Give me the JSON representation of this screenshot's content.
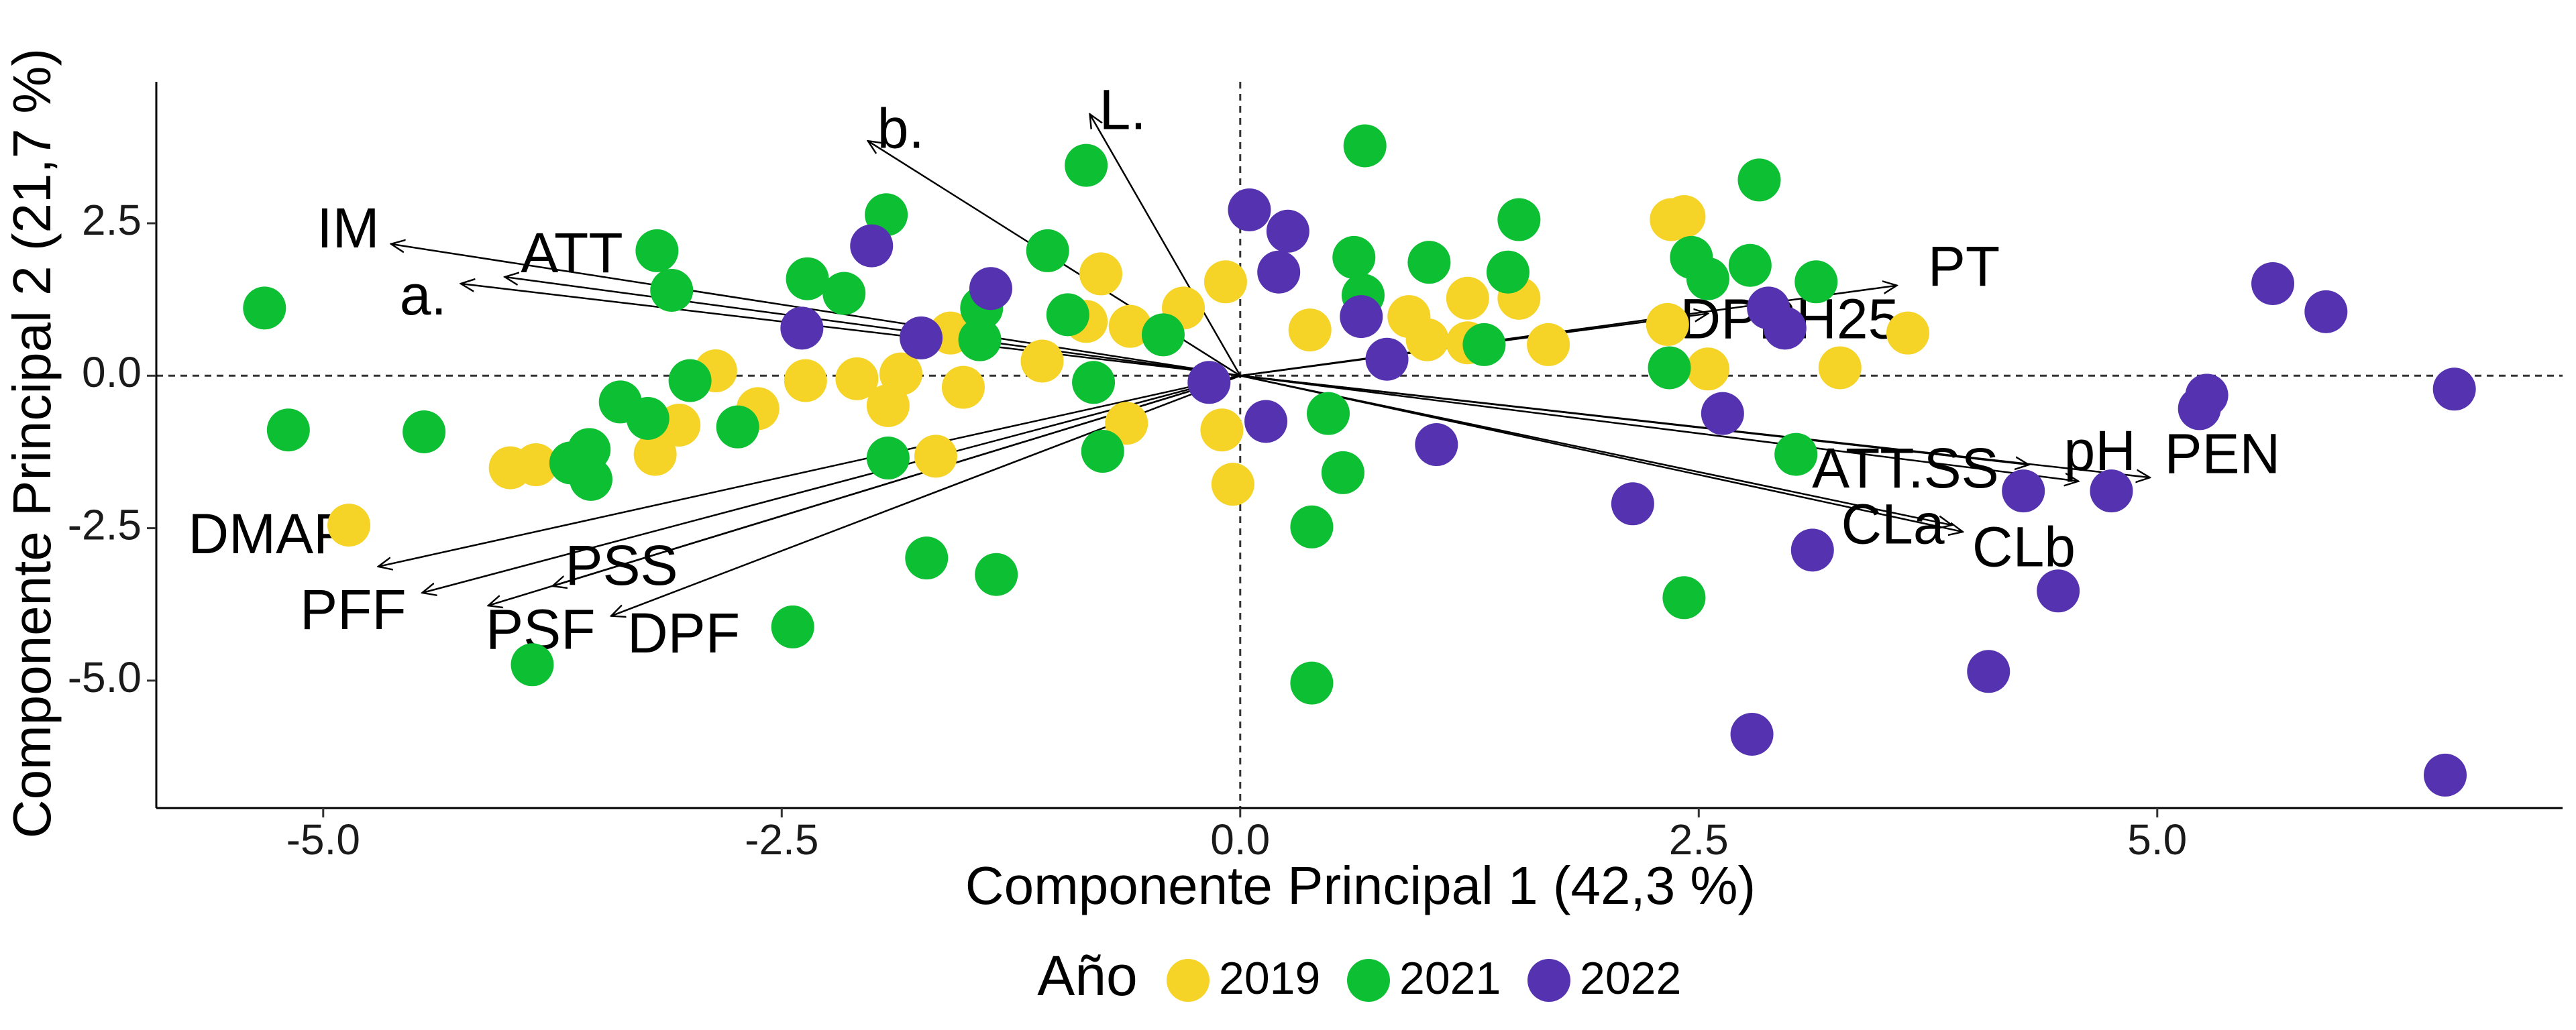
{
  "chart_data": {
    "type": "scatter",
    "x_label": "Componente Principal 1 (42,3 %)",
    "y_label": "Componente Principal 2 (21,7 %)",
    "legend_title": "Año",
    "legend": "bottom",
    "reference_lines": {
      "x": 0,
      "y": 0
    },
    "xlim": [
      -5.91,
      7.21
    ],
    "ylim": [
      -7.09,
      4.82
    ],
    "xticks": [
      {
        "value": -5,
        "label": "-5.0"
      },
      -2.5,
      {
        "value": 0,
        "label": "0.0"
      },
      2.5,
      {
        "value": 5,
        "label": "5.0"
      }
    ],
    "yticks": [
      2.5,
      {
        "value": 0,
        "label": "0.0"
      },
      -2.5,
      {
        "value": -5,
        "label": "-5.0"
      }
    ],
    "series": [
      {
        "name": "2019",
        "color": "#f5d327",
        "x": [
          -4.86,
          -3.98,
          -3.84,
          -3.19,
          -3.06,
          -2.86,
          -2.63,
          -2.37,
          -2.09,
          -1.92,
          -1.85,
          -1.66,
          -1.51,
          -1.58,
          -1.08,
          -0.76,
          -0.84,
          -0.6,
          -0.31,
          -0.62,
          -0.1,
          -0.04,
          -0.08,
          0.38,
          0.92,
          1.02,
          1.24,
          1.24,
          1.52,
          1.68,
          2.33,
          2.35,
          2.42,
          2.55,
          3.27,
          3.64
        ],
        "values": [
          -2.45,
          -1.51,
          -1.46,
          -1.29,
          -0.81,
          0.08,
          -0.54,
          -0.08,
          -0.05,
          -0.49,
          0.03,
          -1.32,
          -0.19,
          0.7,
          0.24,
          1.67,
          0.89,
          0.81,
          1.11,
          -0.78,
          -0.89,
          -1.78,
          1.54,
          0.75,
          0.97,
          0.59,
          1.27,
          0.54,
          1.27,
          0.51,
          0.84,
          2.56,
          2.61,
          0.11,
          0.13,
          0.7
        ]
      },
      {
        "name": "2021",
        "color": "#0dbf33",
        "x": [
          -5.32,
          -5.19,
          -4.45,
          -3.86,
          -3.65,
          -3.55,
          -3.54,
          -3.38,
          -3.23,
          -3.18,
          -3.1,
          -3.0,
          -2.74,
          -2.44,
          -2.36,
          -2.16,
          -1.93,
          -1.92,
          -1.71,
          -1.42,
          -1.41,
          -1.33,
          -1.05,
          -0.94,
          -0.84,
          -0.8,
          -0.75,
          -0.42,
          0.39,
          0.39,
          0.48,
          0.56,
          0.62,
          0.67,
          0.68,
          1.03,
          1.33,
          1.46,
          1.52,
          2.34,
          2.42,
          2.46,
          2.55,
          2.78,
          2.83,
          3.03,
          3.14
        ],
        "values": [
          1.11,
          -0.89,
          -0.92,
          -4.74,
          -1.43,
          -1.21,
          -1.7,
          -0.43,
          -0.7,
          2.05,
          1.4,
          -0.08,
          -0.84,
          -4.12,
          1.59,
          1.35,
          2.64,
          -1.35,
          -2.99,
          0.59,
          1.11,
          -3.26,
          2.05,
          1.0,
          3.45,
          -0.11,
          -1.24,
          0.67,
          -5.04,
          -2.48,
          -0.62,
          -1.59,
          1.94,
          1.32,
          3.77,
          1.86,
          0.51,
          1.7,
          2.56,
          0.13,
          -3.64,
          1.94,
          1.59,
          1.81,
          3.21,
          -1.29,
          1.54
        ]
      },
      {
        "name": "2022",
        "color": "#5533b0",
        "x": [
          -2.39,
          -2.01,
          -1.74,
          -1.36,
          -0.17,
          0.05,
          0.14,
          0.21,
          0.26,
          0.66,
          0.8,
          1.07,
          2.14,
          2.63,
          2.79,
          2.88,
          2.97,
          3.12,
          4.08,
          4.27,
          4.46,
          4.75,
          5.23,
          5.27,
          5.63,
          5.92,
          6.57,
          6.62
        ],
        "values": [
          0.78,
          2.13,
          0.62,
          1.43,
          -0.11,
          2.72,
          -0.75,
          1.7,
          2.37,
          0.97,
          0.27,
          -1.13,
          -2.1,
          -0.62,
          -5.88,
          1.11,
          0.78,
          -2.86,
          -4.85,
          -1.89,
          -3.53,
          -1.89,
          -0.54,
          -0.32,
          1.51,
          1.05,
          -6.55,
          -0.22
        ]
      }
    ],
    "loadings": {
      "labels": [
        "IM",
        "ATT",
        "a.",
        "b.",
        "L.",
        "PT",
        "DPPH25",
        "ATT.SS",
        "pH",
        "PEN",
        "CLa",
        "CLb",
        "DMAP",
        "PFF",
        "PSS",
        "PSF",
        "DPF"
      ],
      "x": [
        -4.63,
        -4.01,
        -4.25,
        -2.03,
        -0.82,
        3.58,
        2.55,
        4.3,
        4.57,
        4.96,
        3.88,
        3.94,
        -4.7,
        -4.46,
        -3.75,
        -4.1,
        -3.43
      ],
      "y": [
        2.16,
        1.62,
        1.51,
        3.85,
        4.29,
        1.48,
        1.02,
        -1.46,
        -1.73,
        -1.67,
        -2.45,
        -2.56,
        -3.13,
        -3.56,
        -3.45,
        -3.77,
        -3.94
      ]
    }
  }
}
